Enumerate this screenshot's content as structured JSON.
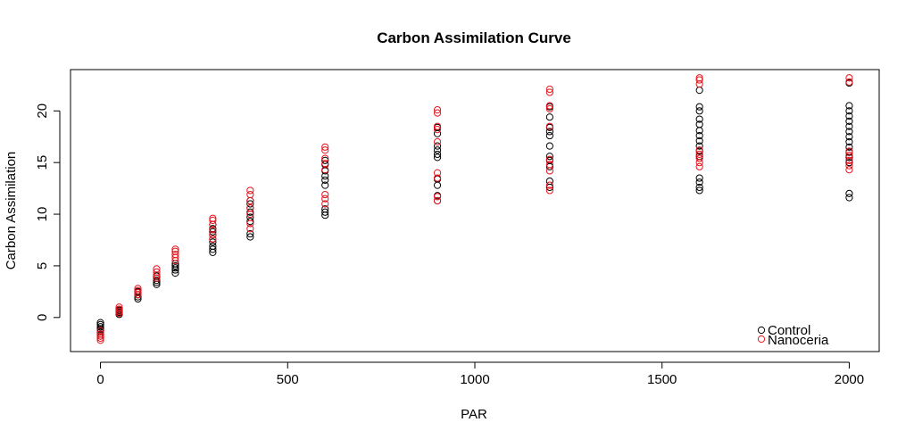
{
  "chart_data": {
    "type": "scatter",
    "title": "Carbon Assimilation Curve",
    "xlabel": "PAR",
    "ylabel": "Carbon Assimilation",
    "xlim": [
      -80,
      2080
    ],
    "ylim": [
      -3.3,
      24
    ],
    "xticks": [
      0,
      500,
      1000,
      1500,
      2000
    ],
    "yticks": [
      0,
      5,
      10,
      15,
      20
    ],
    "grid": false,
    "legend_position": "bottom-right",
    "series": [
      {
        "name": "Control",
        "color": "#000000",
        "points": [
          [
            0,
            -0.5
          ],
          [
            0,
            -0.7
          ],
          [
            0,
            -0.9
          ],
          [
            0,
            -1.1
          ],
          [
            0,
            -1.2
          ],
          [
            0,
            -1.4
          ],
          [
            0,
            -1.6
          ],
          [
            0,
            -1.8
          ],
          [
            50,
            0.3
          ],
          [
            50,
            0.5
          ],
          [
            50,
            0.6
          ],
          [
            50,
            0.7
          ],
          [
            100,
            1.8
          ],
          [
            100,
            2.0
          ],
          [
            100,
            2.2
          ],
          [
            100,
            2.4
          ],
          [
            100,
            2.5
          ],
          [
            150,
            3.2
          ],
          [
            150,
            3.4
          ],
          [
            150,
            3.6
          ],
          [
            150,
            3.8
          ],
          [
            150,
            4.0
          ],
          [
            200,
            4.3
          ],
          [
            200,
            4.6
          ],
          [
            200,
            4.8
          ],
          [
            200,
            5.0
          ],
          [
            200,
            5.2
          ],
          [
            300,
            6.3
          ],
          [
            300,
            6.6
          ],
          [
            300,
            6.9
          ],
          [
            300,
            7.3
          ],
          [
            300,
            7.6
          ],
          [
            300,
            8.0
          ],
          [
            300,
            8.3
          ],
          [
            300,
            8.6
          ],
          [
            300,
            9.0
          ],
          [
            400,
            7.8
          ],
          [
            400,
            8.1
          ],
          [
            400,
            9.3
          ],
          [
            400,
            9.7
          ],
          [
            400,
            10.2
          ],
          [
            400,
            10.6
          ],
          [
            400,
            11.0
          ],
          [
            400,
            11.3
          ],
          [
            600,
            9.9
          ],
          [
            600,
            10.2
          ],
          [
            600,
            10.5
          ],
          [
            600,
            12.8
          ],
          [
            600,
            13.3
          ],
          [
            600,
            13.7
          ],
          [
            600,
            14.2
          ],
          [
            600,
            14.8
          ],
          [
            600,
            15.2
          ],
          [
            900,
            11.3
          ],
          [
            900,
            11.8
          ],
          [
            900,
            12.8
          ],
          [
            900,
            13.4
          ],
          [
            900,
            15.5
          ],
          [
            900,
            15.8
          ],
          [
            900,
            16.2
          ],
          [
            900,
            16.6
          ],
          [
            900,
            17.8
          ],
          [
            900,
            18.4
          ],
          [
            1200,
            12.6
          ],
          [
            1200,
            13.2
          ],
          [
            1200,
            14.6
          ],
          [
            1200,
            15.2
          ],
          [
            1200,
            15.6
          ],
          [
            1200,
            16.6
          ],
          [
            1200,
            17.6
          ],
          [
            1200,
            18.0
          ],
          [
            1200,
            18.4
          ],
          [
            1200,
            19.4
          ],
          [
            1200,
            20.4
          ],
          [
            1600,
            12.3
          ],
          [
            1600,
            12.6
          ],
          [
            1600,
            13.1
          ],
          [
            1600,
            13.5
          ],
          [
            1600,
            15.6
          ],
          [
            1600,
            16.1
          ],
          [
            1600,
            16.6
          ],
          [
            1600,
            17.1
          ],
          [
            1600,
            17.6
          ],
          [
            1600,
            18.1
          ],
          [
            1600,
            18.7
          ],
          [
            1600,
            19.2
          ],
          [
            1600,
            20.0
          ],
          [
            1600,
            20.4
          ],
          [
            1600,
            22.0
          ],
          [
            2000,
            11.6
          ],
          [
            2000,
            12.0
          ],
          [
            2000,
            15.0
          ],
          [
            2000,
            15.5
          ],
          [
            2000,
            16.0
          ],
          [
            2000,
            16.5
          ],
          [
            2000,
            17.0
          ],
          [
            2000,
            17.5
          ],
          [
            2000,
            18.0
          ],
          [
            2000,
            18.5
          ],
          [
            2000,
            19.0
          ],
          [
            2000,
            19.5
          ],
          [
            2000,
            20.0
          ],
          [
            2000,
            20.5
          ],
          [
            2000,
            22.7
          ]
        ]
      },
      {
        "name": "Nanoceria",
        "color": "#e8141c",
        "points": [
          [
            0,
            -1.3
          ],
          [
            0,
            -1.6
          ],
          [
            0,
            -1.8
          ],
          [
            0,
            -2.0
          ],
          [
            0,
            -2.2
          ],
          [
            50,
            0.4
          ],
          [
            50,
            0.6
          ],
          [
            50,
            0.8
          ],
          [
            50,
            1.0
          ],
          [
            100,
            2.2
          ],
          [
            100,
            2.4
          ],
          [
            100,
            2.6
          ],
          [
            100,
            2.8
          ],
          [
            150,
            3.8
          ],
          [
            150,
            4.1
          ],
          [
            150,
            4.4
          ],
          [
            150,
            4.7
          ],
          [
            200,
            5.5
          ],
          [
            200,
            5.8
          ],
          [
            200,
            6.1
          ],
          [
            200,
            6.4
          ],
          [
            200,
            6.6
          ],
          [
            300,
            7.6
          ],
          [
            300,
            8.0
          ],
          [
            300,
            8.5
          ],
          [
            300,
            9.0
          ],
          [
            300,
            9.4
          ],
          [
            300,
            9.6
          ],
          [
            400,
            8.6
          ],
          [
            400,
            9.1
          ],
          [
            400,
            10.0
          ],
          [
            400,
            10.6
          ],
          [
            400,
            11.3
          ],
          [
            400,
            11.9
          ],
          [
            400,
            12.3
          ],
          [
            600,
            11.0
          ],
          [
            600,
            11.5
          ],
          [
            600,
            11.9
          ],
          [
            600,
            14.3
          ],
          [
            600,
            14.9
          ],
          [
            600,
            15.4
          ],
          [
            600,
            16.2
          ],
          [
            600,
            16.5
          ],
          [
            900,
            11.3
          ],
          [
            900,
            11.7
          ],
          [
            900,
            13.5
          ],
          [
            900,
            14.0
          ],
          [
            900,
            17.0
          ],
          [
            900,
            18.2
          ],
          [
            900,
            18.5
          ],
          [
            900,
            19.8
          ],
          [
            900,
            20.1
          ],
          [
            1200,
            12.3
          ],
          [
            1200,
            12.8
          ],
          [
            1200,
            14.2
          ],
          [
            1200,
            14.8
          ],
          [
            1200,
            15.3
          ],
          [
            1200,
            18.5
          ],
          [
            1200,
            20.2
          ],
          [
            1200,
            20.5
          ],
          [
            1200,
            21.8
          ],
          [
            1200,
            22.1
          ],
          [
            1600,
            14.6
          ],
          [
            1600,
            15.0
          ],
          [
            1600,
            15.4
          ],
          [
            1600,
            15.8
          ],
          [
            1600,
            16.2
          ],
          [
            1600,
            22.6
          ],
          [
            1600,
            23.0
          ],
          [
            1600,
            23.2
          ],
          [
            2000,
            14.3
          ],
          [
            2000,
            14.7
          ],
          [
            2000,
            15.2
          ],
          [
            2000,
            15.7
          ],
          [
            2000,
            16.1
          ],
          [
            2000,
            22.8
          ],
          [
            2000,
            23.2
          ]
        ]
      }
    ]
  }
}
